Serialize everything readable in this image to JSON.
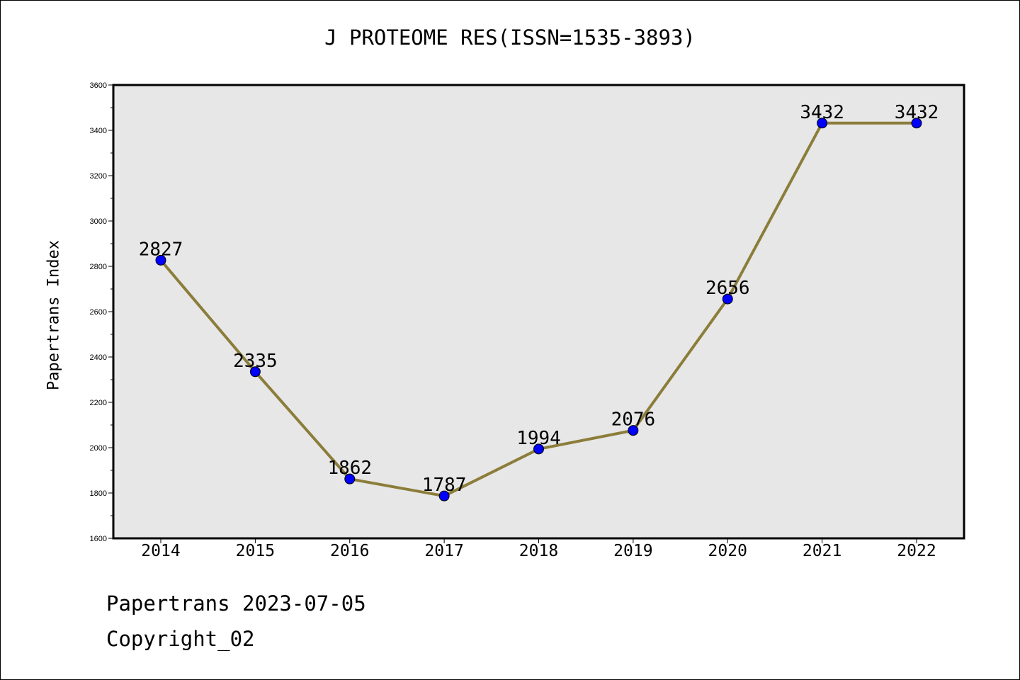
{
  "chart_data": {
    "type": "line",
    "title": "J PROTEOME RES(ISSN=1535-3893)",
    "xlabel": "",
    "ylabel": "Papertrans Index",
    "categories": [
      "2014",
      "2015",
      "2016",
      "2017",
      "2018",
      "2019",
      "2020",
      "2021",
      "2022"
    ],
    "series": [
      {
        "values": [
          2827,
          2335,
          1862,
          1787,
          1994,
          2076,
          2656,
          3432,
          3432
        ]
      }
    ],
    "ylim": [
      1600,
      3600
    ],
    "yticks": [
      1600,
      1800,
      2000,
      2200,
      2400,
      2600,
      2800,
      3000,
      3200,
      3400,
      3600
    ],
    "grid": false,
    "colors": {
      "line": "#8b7d3a",
      "marker": "#0000ff",
      "plot_bg": "#e7e7e7"
    }
  },
  "footer": {
    "date_line": "Papertrans 2023-07-05",
    "copyright": "Copyright_02"
  }
}
